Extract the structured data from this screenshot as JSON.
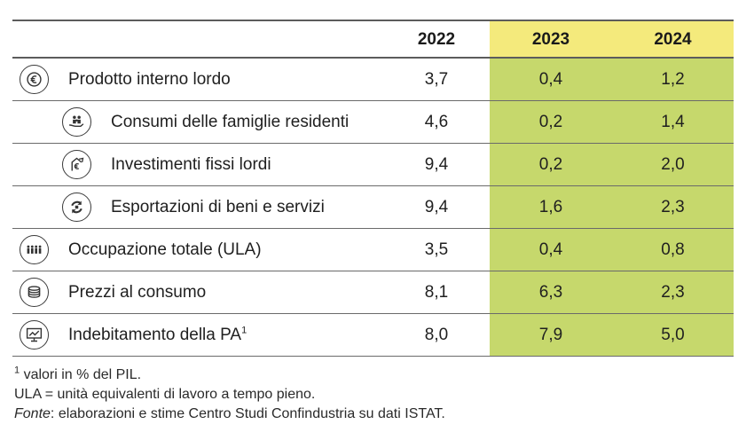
{
  "table": {
    "headers": [
      "",
      "2022",
      "2023",
      "2024"
    ],
    "rows": [
      {
        "label": "Prodotto interno lordo",
        "sup": "",
        "icon": "euro-coin-icon",
        "level": "main",
        "v2022": "3,7",
        "v2023": "0,4",
        "v2024": "1,2"
      },
      {
        "label": "Consumi delle famiglie residenti",
        "sup": "",
        "icon": "family-hand-icon",
        "level": "sub",
        "v2022": "4,6",
        "v2023": "0,2",
        "v2024": "1,4"
      },
      {
        "label": "Investimenti fissi lordi",
        "sup": "",
        "icon": "euro-growth-icon",
        "level": "sub",
        "v2022": "9,4",
        "v2023": "0,2",
        "v2024": "2,0"
      },
      {
        "label": "Esportazioni di beni e servizi",
        "sup": "",
        "icon": "export-arrows-icon",
        "level": "sub",
        "v2022": "9,4",
        "v2023": "1,6",
        "v2024": "2,3"
      },
      {
        "label": "Occupazione totale (ULA)",
        "sup": "",
        "icon": "workers-group-icon",
        "level": "main",
        "v2022": "3,5",
        "v2023": "0,4",
        "v2024": "0,8"
      },
      {
        "label": "Prezzi al consumo",
        "sup": "",
        "icon": "coin-stack-icon",
        "level": "main",
        "v2022": "8,1",
        "v2023": "6,3",
        "v2024": "2,3"
      },
      {
        "label": "Indebitamento della PA",
        "sup": "1",
        "icon": "monitor-chart-icon",
        "level": "main",
        "v2022": "8,0",
        "v2023": "7,9",
        "v2024": "5,0"
      }
    ]
  },
  "notes": {
    "note1_sup": "1",
    "note1_text": " valori in % del PIL.",
    "note2": "ULA = unità equivalenti di lavoro a tempo pieno.",
    "source_label": "Fonte",
    "source_text": ": elaborazioni e stime Centro Studi Confindustria su dati ISTAT."
  },
  "colors": {
    "header_highlight": "#f4ea7c",
    "cell_highlight": "#c6d86c",
    "rule": "#5c5c5c"
  }
}
